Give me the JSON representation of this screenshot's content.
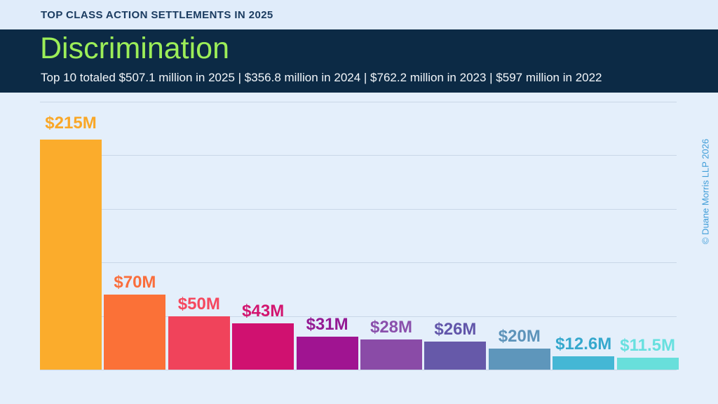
{
  "eyebrow": "TOP CLASS ACTION SETTLEMENTS IN 2025",
  "header": {
    "title": "Discrimination",
    "subtitle": "Top 10 totaled $507.1 million in 2025 | $356.8 million in 2024 | $762.2 million in 2023 | $597 million in 2022"
  },
  "watermark": "© Duane Morris LLP 2026",
  "colors": {
    "topbar_bg": "#E0ECFA",
    "topbar_text": "#1A3B60",
    "banner_bg": "#0C2A45",
    "title": "#9CEE58",
    "subtitle": "#F2F6FA",
    "chart_bg": "#E4EFFB",
    "gridline": "#C9D7E7",
    "watermark": "#3F9DD8"
  },
  "chart_data": {
    "type": "bar",
    "title": "Discrimination",
    "subtitle_totals": "Top 10 totaled $507.1 million in 2025 | $356.8 million in 2024 | $762.2 million in 2023 | $597 million in 2022",
    "unit": "USD millions",
    "values": [
      215,
      70,
      50,
      43,
      31,
      28,
      26,
      20,
      12.6,
      11.5
    ],
    "labels": [
      "$215M",
      "$70M",
      "$50M",
      "$43M",
      "$31M",
      "$28M",
      "$26M",
      "$20M",
      "$12.6M",
      "$11.5M"
    ],
    "bar_colors": [
      "#FBAC2C",
      "#FB7137",
      "#F0435B",
      "#D01170",
      "#A01491",
      "#8A4BA7",
      "#6659A9",
      "#5E96BB",
      "#44B7D5",
      "#68DFDB"
    ],
    "label_colors": [
      "#F9A727",
      "#FA6E3C",
      "#F5485E",
      "#D2156F",
      "#941A94",
      "#8A50AC",
      "#6156AA",
      "#5C93BA",
      "#35A8CD",
      "#67E0DF"
    ],
    "xlabel": "",
    "ylabel": "",
    "ylim": [
      0,
      250
    ],
    "gridline_interval": 50,
    "grid": true,
    "legend": false
  }
}
